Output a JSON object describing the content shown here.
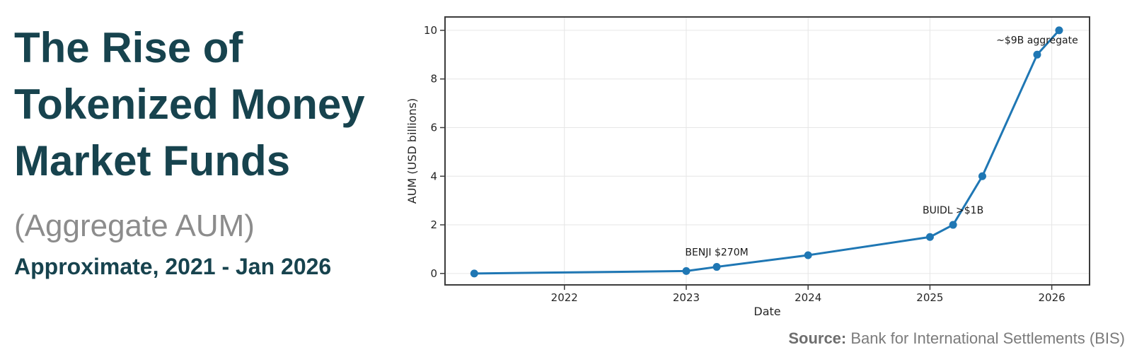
{
  "header": {
    "title_lines": [
      "The Rise of",
      "Tokenized Money",
      "Market Funds"
    ],
    "subtitle": "(Aggregate AUM)",
    "period": "Approximate, 2021 - Jan 2026"
  },
  "source": {
    "label": "Source:",
    "text": " Bank for International Settlements (BIS)"
  },
  "chart_data": {
    "type": "line",
    "xlabel": "Date",
    "ylabel": "AUM (USD billions)",
    "x": [
      2021.26,
      2023.0,
      2023.25,
      2024.0,
      2025.0,
      2025.19,
      2025.43,
      2025.88,
      2026.06
    ],
    "y": [
      0.0,
      0.1,
      0.27,
      0.75,
      1.5,
      2.0,
      4.0,
      9.0,
      10.0
    ],
    "xticks": [
      2022,
      2023,
      2024,
      2025,
      2026
    ],
    "yticks": [
      0,
      2,
      4,
      6,
      8,
      10
    ],
    "xlim": [
      2021.02,
      2026.31
    ],
    "ylim": [
      -0.47,
      10.55
    ],
    "grid": true,
    "legend": "none",
    "line_color": "#1f77b4",
    "grid_color": "#e6e6e6",
    "spine_color": "#3c3c3c",
    "annotations": [
      {
        "text": "BENJI $270M",
        "x": 2023.25,
        "y": 0.27
      },
      {
        "text": "BUIDL >$1B",
        "x": 2025.19,
        "y": 2.0
      },
      {
        "text": "~$9B aggregate",
        "x": 2025.88,
        "y": 9.0
      }
    ]
  }
}
